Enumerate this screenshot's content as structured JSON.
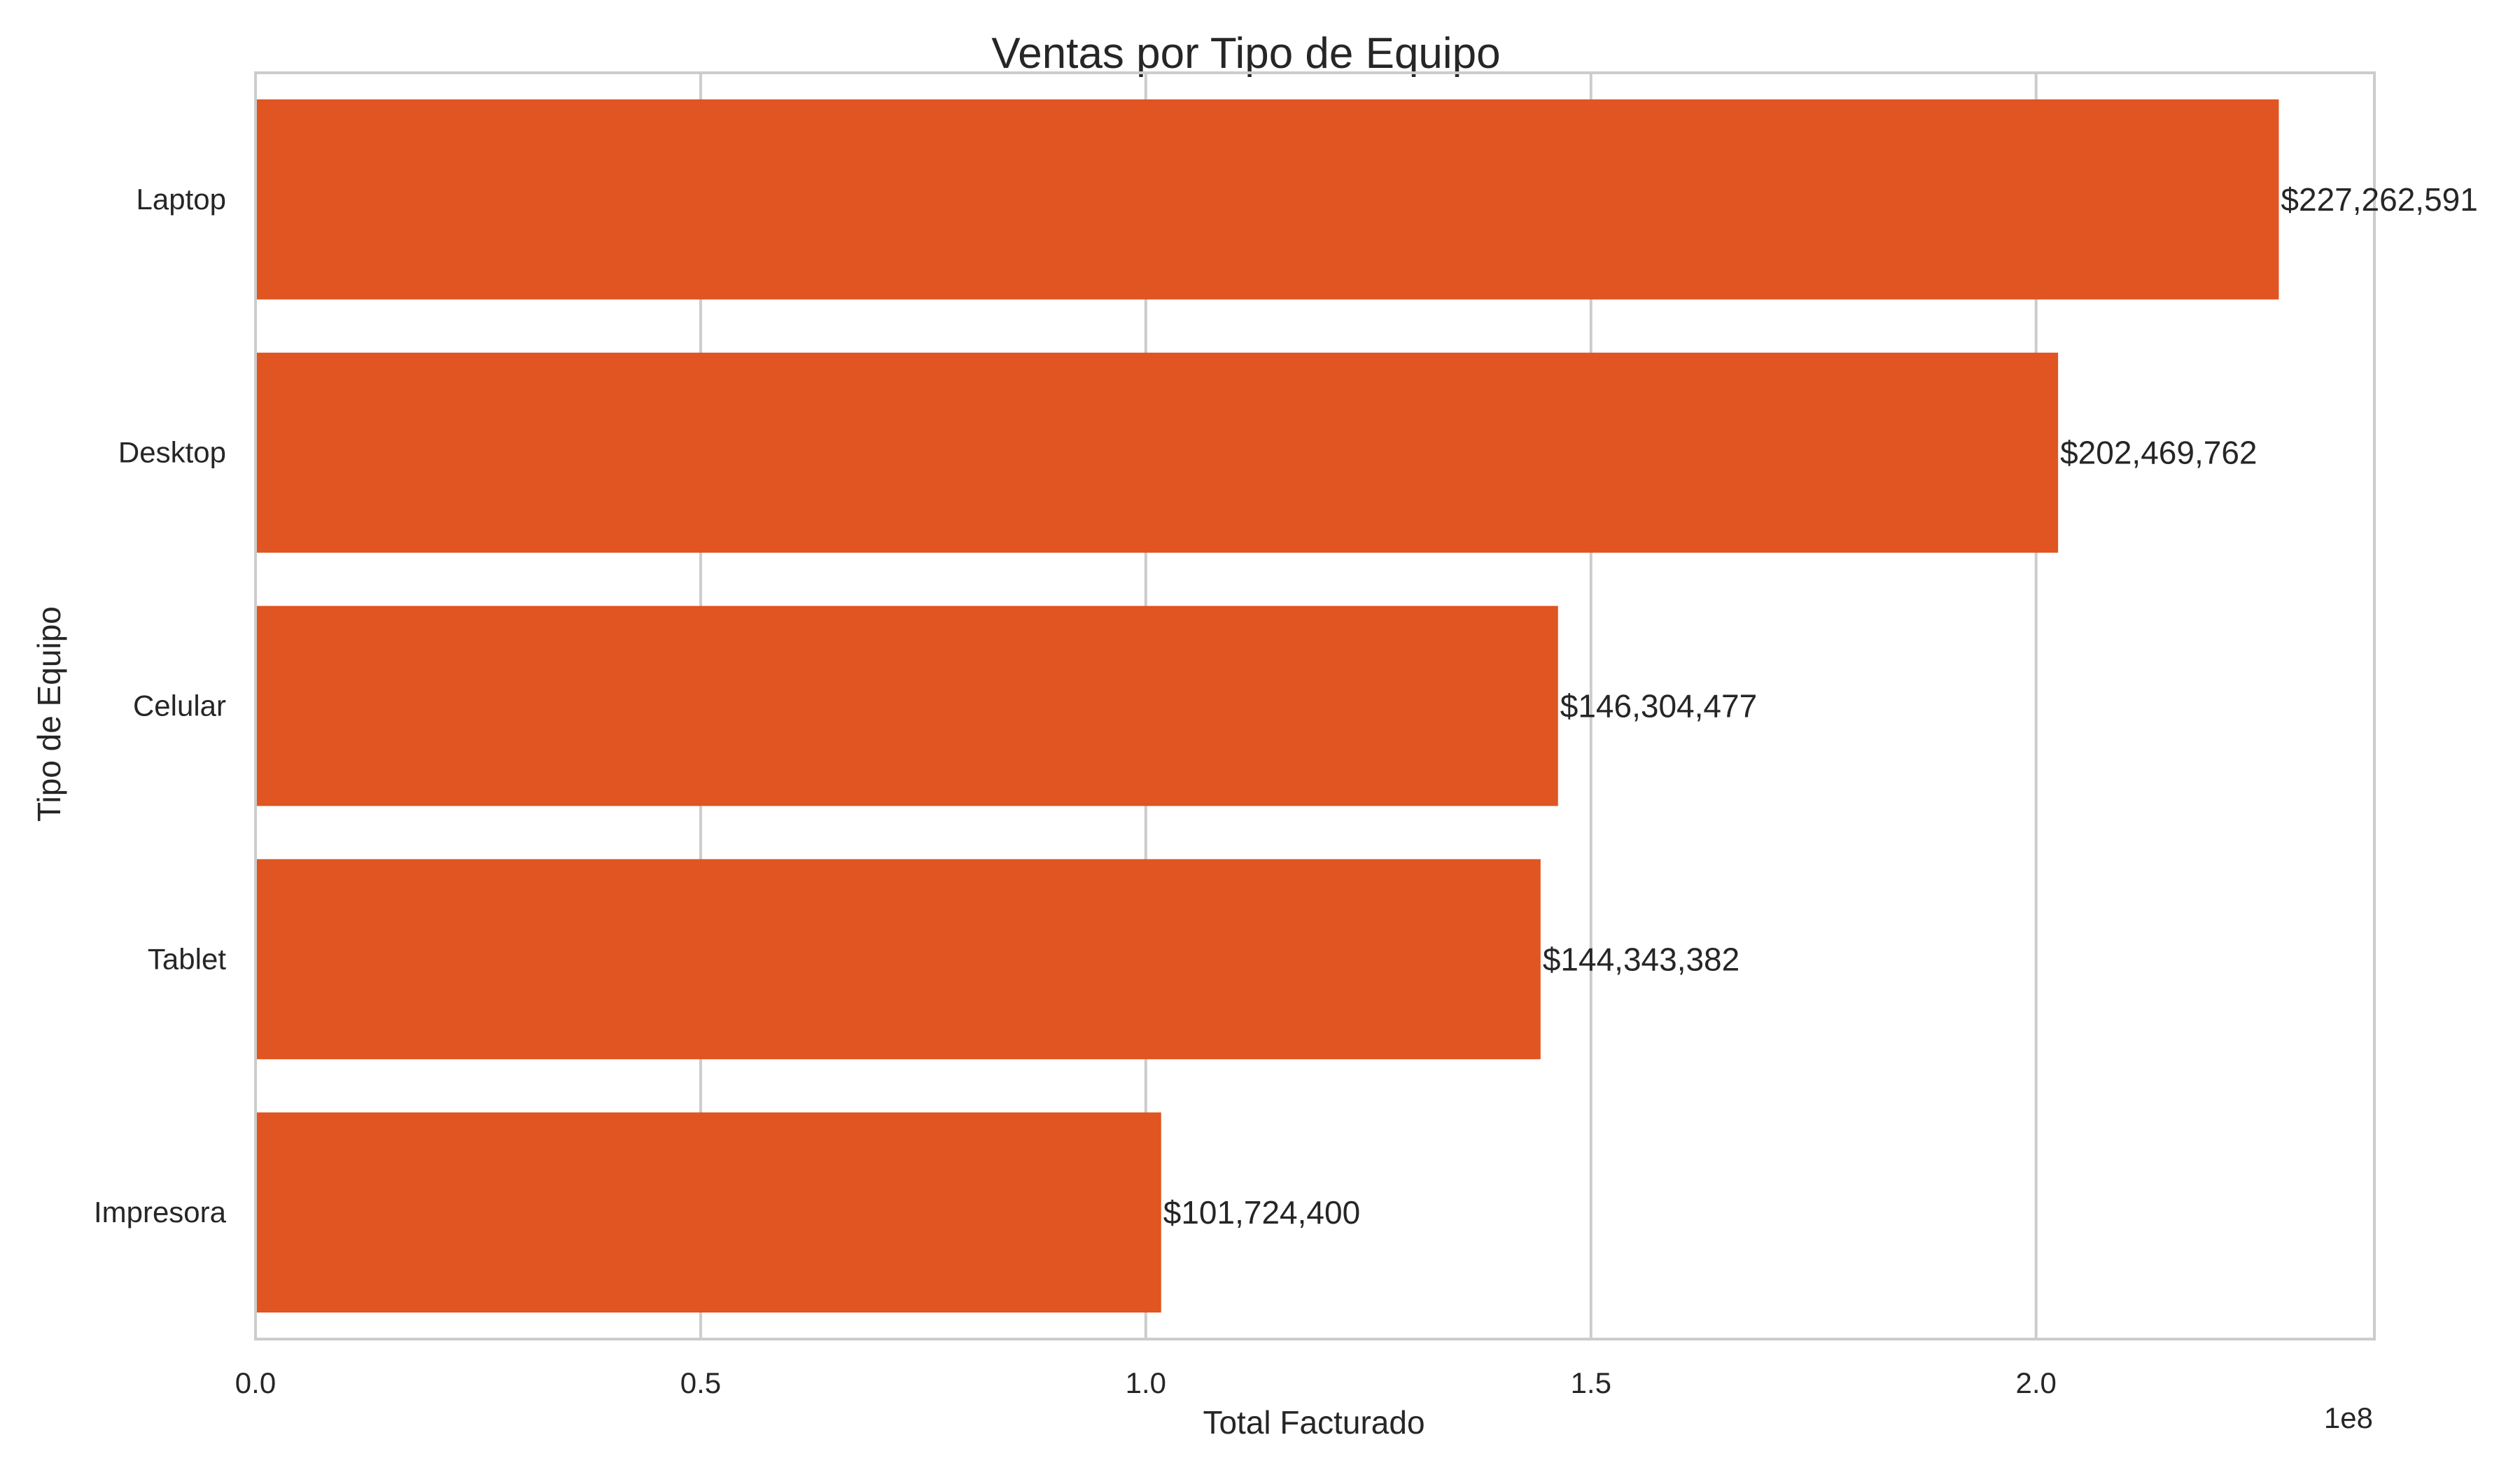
{
  "chart_data": {
    "type": "bar",
    "orientation": "horizontal",
    "title": "Ventas por Tipo de Equipo",
    "xlabel": "Total Facturado",
    "ylabel": "Tipo de Equipo",
    "x_offset_label": "1e8",
    "categories": [
      "Laptop",
      "Desktop",
      "Celular",
      "Tablet",
      "Impresora"
    ],
    "values": [
      227262591,
      202469762,
      146304477,
      144343382,
      101724400
    ],
    "data_labels": [
      "$227,262,591",
      "$202,469,762",
      "$146,304,477",
      "$144,343,382",
      "$101,724,400"
    ],
    "xlim": [
      0,
      238000000
    ],
    "x_ticks": [
      0,
      50000000,
      100000000,
      150000000,
      200000000
    ],
    "x_tick_labels": [
      "0.0",
      "0.5",
      "1.0",
      "1.5",
      "2.0"
    ],
    "grid": "vertical",
    "legend": "none",
    "bar_color": "#e05521"
  }
}
